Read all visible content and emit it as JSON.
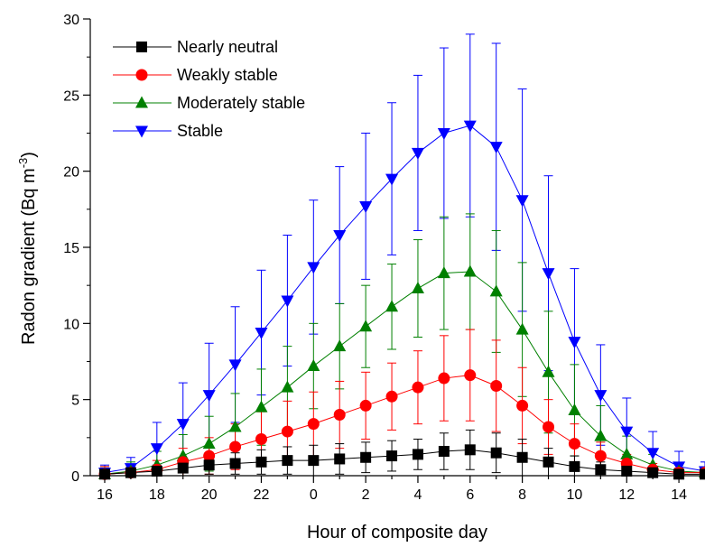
{
  "chart_data": {
    "type": "line",
    "title": "",
    "xlabel": "Hour of composite day",
    "ylabel": {
      "main": "Radon gradient (Bq m",
      "superscript": "-3",
      "close": ")"
    },
    "ylim": [
      0,
      30
    ],
    "yticks": [
      "0",
      "5",
      "10",
      "15",
      "20",
      "25",
      "30"
    ],
    "xtick_labels": [
      "16",
      "18",
      "20",
      "22",
      "0",
      "2",
      "4",
      "6",
      "8",
      "10",
      "12",
      "14"
    ],
    "x": [
      16,
      17,
      18,
      19,
      20,
      21,
      22,
      23,
      0,
      1,
      2,
      3,
      4,
      5,
      6,
      7,
      8,
      9,
      10,
      11,
      12,
      13,
      14,
      15
    ],
    "grid": false,
    "legend_position": "top-left",
    "series": [
      {
        "name": "Nearly neutral",
        "color": "#000000",
        "marker": "square",
        "values": [
          0.1,
          0.2,
          0.3,
          0.5,
          0.7,
          0.8,
          0.9,
          1.0,
          1.0,
          1.1,
          1.2,
          1.3,
          1.4,
          1.6,
          1.7,
          1.5,
          1.2,
          0.9,
          0.6,
          0.4,
          0.3,
          0.2,
          0.1,
          0.1
        ],
        "errors": [
          0.4,
          0.4,
          0.4,
          0.5,
          0.6,
          0.7,
          0.8,
          0.9,
          1.0,
          1.0,
          1.0,
          1.0,
          1.0,
          1.2,
          1.3,
          1.3,
          1.2,
          0.9,
          0.7,
          0.5,
          0.4,
          0.3,
          0.2,
          0.3
        ]
      },
      {
        "name": "Weakly stable",
        "color": "#ff0000",
        "marker": "circle",
        "values": [
          0.1,
          0.2,
          0.4,
          0.9,
          1.3,
          1.9,
          2.4,
          2.9,
          3.4,
          4.0,
          4.6,
          5.2,
          5.8,
          6.4,
          6.6,
          5.9,
          4.6,
          3.2,
          2.1,
          1.3,
          0.8,
          0.4,
          0.2,
          0.2
        ],
        "errors": [
          0.5,
          0.5,
          0.6,
          0.9,
          1.2,
          1.5,
          1.8,
          2.0,
          2.1,
          2.2,
          2.2,
          2.2,
          2.4,
          2.8,
          3.0,
          3.0,
          2.5,
          1.8,
          1.3,
          0.9,
          0.6,
          0.4,
          0.3,
          0.3
        ]
      },
      {
        "name": "Moderately stable",
        "color": "#008000",
        "marker": "triangle-up",
        "values": [
          0.1,
          0.3,
          0.7,
          1.3,
          2.1,
          3.2,
          4.5,
          5.8,
          7.2,
          8.5,
          9.8,
          11.1,
          12.3,
          13.3,
          13.4,
          12.1,
          9.6,
          6.8,
          4.3,
          2.6,
          1.4,
          0.7,
          0.3,
          0.2
        ],
        "errors": [
          0.5,
          0.6,
          0.9,
          1.4,
          1.8,
          2.2,
          2.5,
          2.7,
          2.8,
          2.8,
          2.7,
          2.8,
          3.2,
          3.7,
          3.8,
          4.0,
          4.4,
          4.0,
          3.0,
          2.0,
          1.2,
          0.7,
          0.4,
          0.3
        ]
      },
      {
        "name": "Stable",
        "color": "#0000ff",
        "marker": "triangle-down",
        "values": [
          0.2,
          0.5,
          1.8,
          3.4,
          5.3,
          7.3,
          9.4,
          11.5,
          13.7,
          15.8,
          17.7,
          19.5,
          21.2,
          22.5,
          23.0,
          21.6,
          18.1,
          13.3,
          8.8,
          5.3,
          2.9,
          1.5,
          0.6,
          0.3
        ],
        "errors": [
          0.5,
          0.7,
          1.7,
          2.7,
          3.4,
          3.8,
          4.1,
          4.3,
          4.4,
          4.5,
          4.8,
          5.0,
          5.1,
          5.6,
          6.0,
          6.8,
          7.3,
          6.4,
          4.8,
          3.3,
          2.2,
          1.4,
          1.0,
          0.6
        ]
      }
    ]
  }
}
